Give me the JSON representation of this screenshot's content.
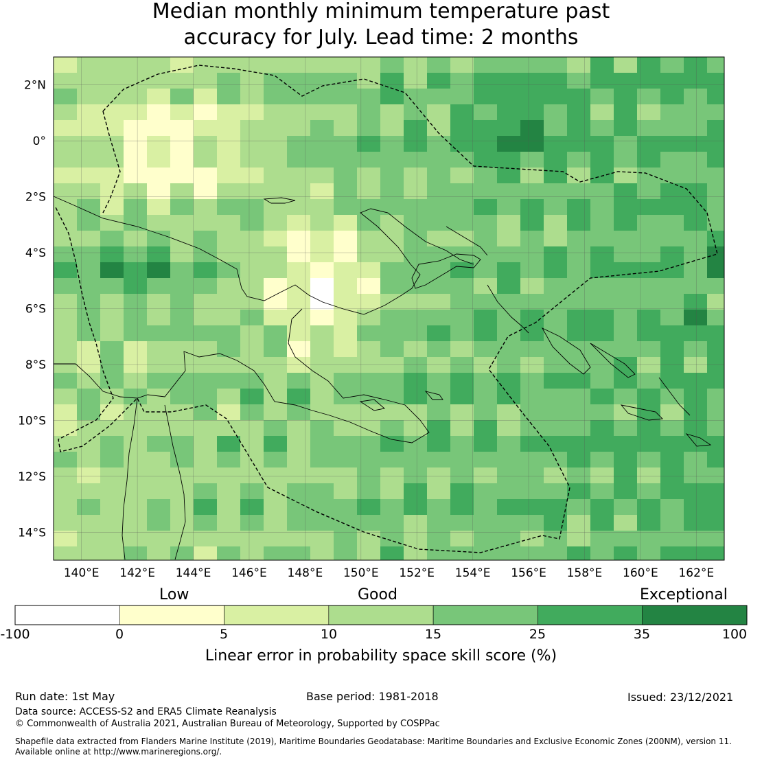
{
  "title_line1": "Median monthly minimum temperature past",
  "title_line2": "accuracy for July. Lead time: 2 months",
  "map": {
    "lon_labels": [
      "140°E",
      "142°E",
      "144°E",
      "146°E",
      "148°E",
      "150°E",
      "152°E",
      "154°E",
      "156°E",
      "158°E",
      "160°E",
      "162°E"
    ],
    "lat_labels": [
      "2°N",
      "0°",
      "2°S",
      "4°S",
      "6°S",
      "8°S",
      "10°S",
      "12°S",
      "14°S"
    ],
    "extent_lon": [
      139,
      163
    ],
    "extent_lat": [
      -15,
      3
    ]
  },
  "colorbar": {
    "category_labels": [
      "Low",
      "Good",
      "Exceptional"
    ],
    "ticks": [
      "-100",
      "0",
      "5",
      "10",
      "15",
      "25",
      "35",
      "100"
    ],
    "colors": [
      "#ffffff",
      "#ffffcc",
      "#d9f0a3",
      "#addd8e",
      "#78c679",
      "#41ab5d",
      "#238443"
    ],
    "axis_title": "Linear error in probability space skill score (%)"
  },
  "footer": {
    "run_date": "Run date: 1st May",
    "base_period": "Base period: 1981-2018",
    "issued": "Issued: 23/12/2021",
    "data_source": "Data source: ACCESS-S2 and ERA5 Climate Reanalysis",
    "copyright": "© Commonwealth of Australia 2021, Australian Bureau of Meteorology, Supported by COSPPac",
    "shapefile_line1": "Shapefile data extracted from Flanders Marine Institute (2019), Maritime Boundaries Geodatabase: Maritime Boundaries and Exclusive Economic Zones (200NM), version 11.",
    "shapefile_line2": "Available online at http://www.marineregions.org/."
  }
}
